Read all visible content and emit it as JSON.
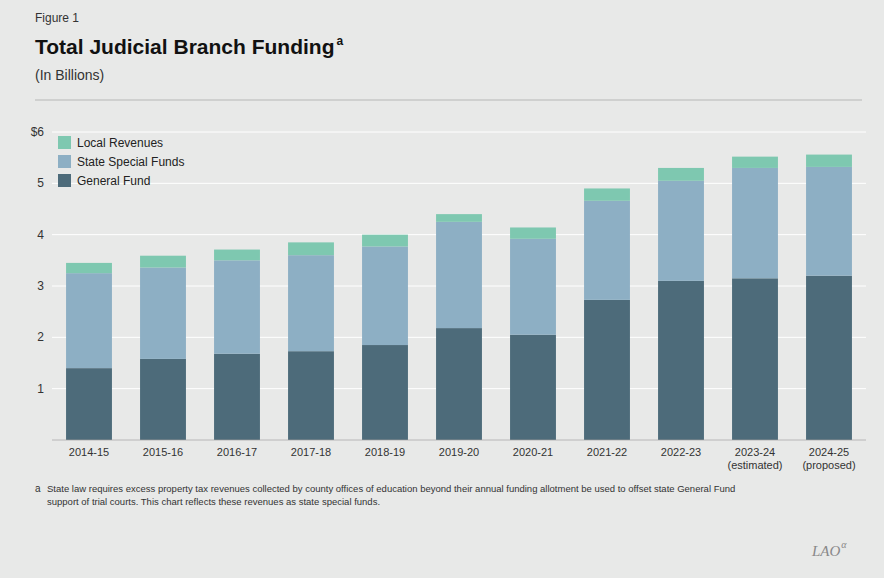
{
  "chart_data": {
    "type": "bar",
    "stacked": true,
    "title": "Total Judicial Branch Funding",
    "subtitle": "(In Billions)",
    "annotations": [
      "Figure 1",
      "a",
      "a",
      "State law requires excess property tax revenues collected by county offices of education beyond their annual funding allotment be used to offset state General Fund\n   support of trial courts. This chart reflects these revenues as state special funds.",
      "LAO",
      "α"
    ],
    "categories": [
      "2014-15",
      "2015-16",
      "2016-17",
      "2017-18",
      "2018-19",
      "2019-20",
      "2020-21",
      "2021-22",
      "2022-23",
      "2023-24\n(estimated)",
      "2024-25\n(proposed)"
    ],
    "series": [
      {
        "name": "General Fund",
        "color": "#4d6b7a",
        "values": [
          1.4,
          1.58,
          1.68,
          1.73,
          1.85,
          2.18,
          2.05,
          2.73,
          3.1,
          3.15,
          3.2
        ]
      },
      {
        "name": "State Special Funds",
        "color": "#8dafc4",
        "values": [
          1.85,
          1.78,
          1.82,
          1.87,
          1.92,
          2.07,
          1.87,
          1.93,
          1.95,
          2.15,
          2.12
        ]
      },
      {
        "name": "Local Revenues",
        "color": "#7ec8b0",
        "values": [
          0.2,
          0.23,
          0.21,
          0.25,
          0.23,
          0.15,
          0.22,
          0.24,
          0.25,
          0.22,
          0.24
        ]
      }
    ],
    "ylim": [
      0,
      6
    ],
    "yticks": [
      {
        "value": 0,
        "label": ""
      },
      1,
      2,
      3,
      4,
      5,
      {
        "value": 6,
        "label": "$6"
      }
    ],
    "grid": true,
    "legend": "upper left"
  }
}
